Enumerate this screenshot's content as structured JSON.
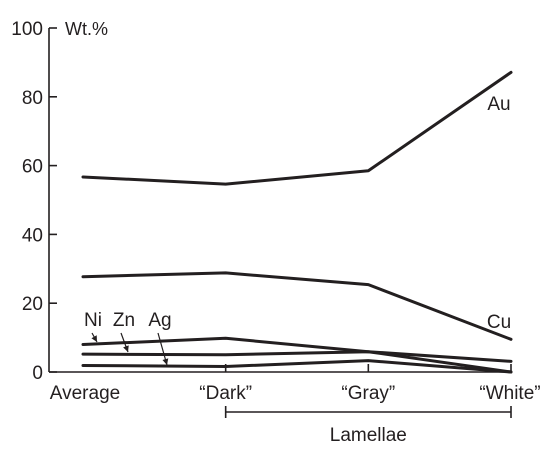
{
  "chart_data": {
    "type": "line",
    "ylabel": "Wt.%",
    "ylim": [
      0,
      100
    ],
    "yticks": [
      0,
      20,
      40,
      60,
      80,
      100
    ],
    "categories": [
      "Average",
      "“Dark”",
      "“Gray”",
      "“White”"
    ],
    "series": [
      {
        "name": "Au",
        "values": [
          56.7,
          54.6,
          58.5,
          87.1
        ]
      },
      {
        "name": "Cu",
        "values": [
          27.7,
          28.8,
          25.4,
          9.5
        ]
      },
      {
        "name": "Ni",
        "values": [
          8,
          9.8,
          5.9,
          0
        ]
      },
      {
        "name": "Zn",
        "values": [
          5.2,
          5.0,
          5.9,
          3.1
        ]
      },
      {
        "name": "Ag",
        "values": [
          1.9,
          1.6,
          3.3,
          0
        ]
      }
    ],
    "grid": false,
    "bracket": {
      "label": "Lamellae",
      "from_category": 1,
      "to_category": 3
    }
  }
}
